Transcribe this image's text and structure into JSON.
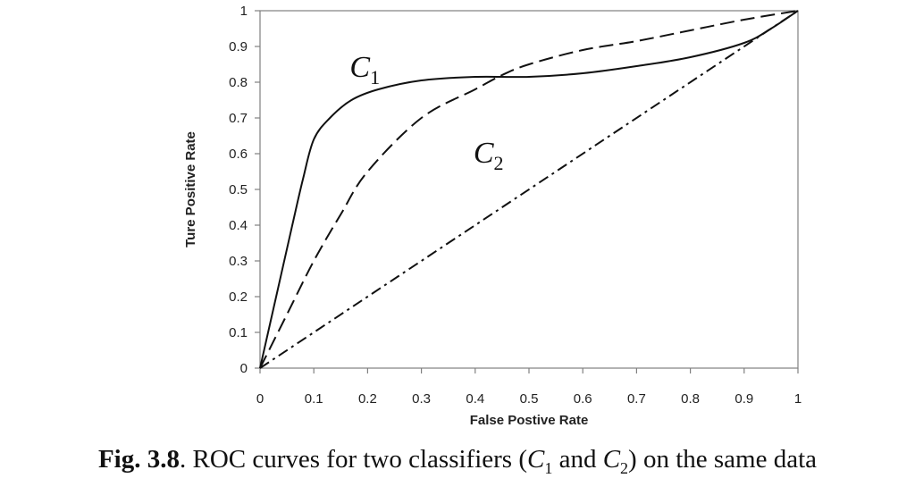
{
  "chart_data": {
    "type": "line",
    "xlabel": "False Postive Rate",
    "ylabel": "Ture Positive Rate",
    "xlim": [
      0,
      1
    ],
    "ylim": [
      0,
      1
    ],
    "xticks": [
      "0",
      "0.1",
      "0.2",
      "0.3",
      "0.4",
      "0.5",
      "0.6",
      "0.7",
      "0.8",
      "0.9",
      "1"
    ],
    "yticks": [
      "0",
      "0.1",
      "0.2",
      "0.3",
      "0.4",
      "0.5",
      "0.6",
      "0.7",
      "0.8",
      "0.9",
      "1"
    ],
    "grid": false,
    "legend": "none",
    "series": [
      {
        "name": "C1",
        "style": "solid",
        "points": [
          [
            0,
            0
          ],
          [
            0.03,
            0.2
          ],
          [
            0.06,
            0.4
          ],
          [
            0.08,
            0.53
          ],
          [
            0.1,
            0.64
          ],
          [
            0.13,
            0.7
          ],
          [
            0.17,
            0.75
          ],
          [
            0.22,
            0.78
          ],
          [
            0.3,
            0.805
          ],
          [
            0.4,
            0.815
          ],
          [
            0.5,
            0.815
          ],
          [
            0.6,
            0.825
          ],
          [
            0.7,
            0.845
          ],
          [
            0.8,
            0.87
          ],
          [
            0.9,
            0.91
          ],
          [
            0.95,
            0.95
          ],
          [
            1,
            1
          ]
        ]
      },
      {
        "name": "C2",
        "style": "dashed",
        "points": [
          [
            0,
            0
          ],
          [
            0.05,
            0.15
          ],
          [
            0.1,
            0.3
          ],
          [
            0.15,
            0.43
          ],
          [
            0.2,
            0.55
          ],
          [
            0.3,
            0.7
          ],
          [
            0.4,
            0.78
          ],
          [
            0.45,
            0.82
          ],
          [
            0.5,
            0.85
          ],
          [
            0.6,
            0.89
          ],
          [
            0.7,
            0.915
          ],
          [
            0.8,
            0.945
          ],
          [
            0.9,
            0.975
          ],
          [
            1,
            1
          ]
        ]
      },
      {
        "name": "",
        "style": "dashdot",
        "points": [
          [
            0,
            0
          ],
          [
            1,
            1
          ]
        ]
      }
    ],
    "annotations": [
      {
        "main": "C",
        "sub": "1",
        "x": 0.2,
        "y": 0.83
      },
      {
        "main": "C",
        "sub": "2",
        "x": 0.43,
        "y": 0.59
      }
    ]
  },
  "caption": {
    "label": "Fig. 3.8",
    "text_1": ". ROC curves for two classifiers (",
    "c1_main": "C",
    "c1_sub": "1",
    "text_2": " and ",
    "c2_main": "C",
    "c2_sub": "2",
    "text_3": ") on the same data"
  }
}
